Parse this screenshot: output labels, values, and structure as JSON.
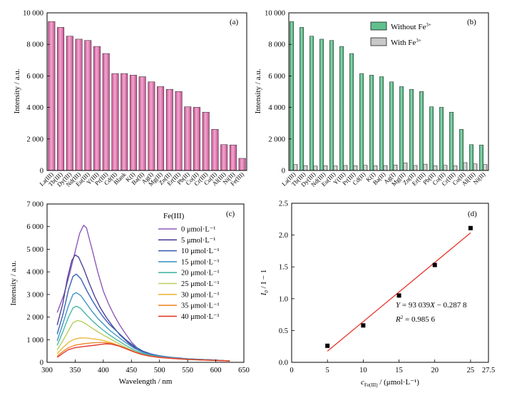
{
  "chart_data": [
    {
      "id": "a",
      "type": "bar",
      "panel_label": "(a)",
      "ylabel": "Intensity / a.u.",
      "ylim": [
        0,
        10000
      ],
      "yticks": [
        0,
        2000,
        4000,
        6000,
        8000,
        10000
      ],
      "ytick_labels": [
        "0",
        "2 000",
        "4 000",
        "6 000",
        "8 000",
        "10 000"
      ],
      "categories": [
        "La(III)",
        "Tb(III)",
        "Dy(III)",
        "Nd(III)",
        "Eu(III)",
        "Y(III)",
        "Pr(III)",
        "Cd(II)",
        "Blank",
        "K(I)",
        "Ba(II)",
        "Ag(I)",
        "Mg(II)",
        "Zn(II)",
        "Er(III)",
        "Pb(II)",
        "Co(II)",
        "Cr(III)",
        "Cu(II)",
        "Al(III)",
        "Ni(II)",
        "Fe(III)"
      ],
      "values": [
        9450,
        9080,
        8520,
        8330,
        8250,
        7870,
        7420,
        6150,
        6150,
        6050,
        5950,
        5620,
        5320,
        5150,
        5010,
        4040,
        4010,
        3700,
        2610,
        1640,
        1620,
        770
      ],
      "color": "#e07cb2"
    },
    {
      "id": "b",
      "type": "bar",
      "panel_label": "(b)",
      "ylabel": "Intensity / a.u.",
      "ylim": [
        0,
        10000
      ],
      "yticks": [
        0,
        2000,
        4000,
        6000,
        8000,
        10000
      ],
      "ytick_labels": [
        "0",
        "2 000",
        "4 000",
        "6 000",
        "8 000",
        "10 000"
      ],
      "categories": [
        "La(III)",
        "Tb(III)",
        "Dy(III)",
        "Nd(III)",
        "Eu(III)",
        "Y(III)",
        "Pr(III)",
        "Cd(II)",
        "K(I)",
        "Ba(II)",
        "Ag(I)",
        "Mg(II)",
        "Zn(II)",
        "Er(III)",
        "Pb(II)",
        "Co(II)",
        "Cr(III)",
        "Cu(II)",
        "Al(III)",
        "Ni(II)"
      ],
      "legend_position": "top-right",
      "series": [
        {
          "name": "Without Fe",
          "name_sup": "3+",
          "color": "#62c08d",
          "values": [
            9450,
            9080,
            8520,
            8330,
            8250,
            7870,
            7420,
            6150,
            6050,
            5950,
            5620,
            5320,
            5150,
            5010,
            4040,
            4010,
            3700,
            2610,
            1640,
            1620
          ]
        },
        {
          "name": "With Fe",
          "name_sup": "3+",
          "color": "#c8c8c8",
          "values": [
            380,
            310,
            280,
            300,
            290,
            320,
            300,
            330,
            300,
            310,
            350,
            480,
            320,
            400,
            300,
            330,
            300,
            500,
            420,
            380
          ]
        }
      ]
    },
    {
      "id": "c",
      "type": "line",
      "panel_label": "(c)",
      "xlabel": "Wavelength / nm",
      "ylabel": "Intensity / a.u.",
      "xlim": [
        300,
        650
      ],
      "xticks": [
        300,
        350,
        400,
        450,
        500,
        550,
        600,
        650
      ],
      "ylim": [
        0,
        7000
      ],
      "yticks": [
        0,
        1000,
        2000,
        3000,
        4000,
        5000,
        6000,
        7000
      ],
      "ytick_labels": [
        "0",
        "1 000",
        "2 000",
        "3 000",
        "4 000",
        "5 000",
        "6 000",
        "7 000"
      ],
      "legend_title": "Fe(III)",
      "legend_position": "top-right",
      "series": [
        {
          "name": "0 μmol·L⁻¹",
          "color": "#8e5ab8",
          "points": [
            [
              318,
              2200
            ],
            [
              330,
              3000
            ],
            [
              340,
              3900
            ],
            [
              350,
              4900
            ],
            [
              358,
              5700
            ],
            [
              365,
              6060
            ],
            [
              370,
              5950
            ],
            [
              380,
              5000
            ],
            [
              390,
              4000
            ],
            [
              400,
              3150
            ],
            [
              410,
              2550
            ],
            [
              420,
              2050
            ],
            [
              430,
              1620
            ],
            [
              440,
              1250
            ],
            [
              450,
              900
            ],
            [
              460,
              640
            ],
            [
              470,
              470
            ],
            [
              480,
              350
            ],
            [
              500,
              250
            ],
            [
              520,
              190
            ],
            [
              540,
              160
            ],
            [
              560,
              140
            ],
            [
              580,
              120
            ],
            [
              600,
              100
            ],
            [
              625,
              60
            ]
          ]
        },
        {
          "name": "5 μmol·L⁻¹",
          "color": "#4f3f9a",
          "points": [
            [
              318,
              1650
            ],
            [
              328,
              2600
            ],
            [
              336,
              3700
            ],
            [
              344,
              4500
            ],
            [
              350,
              4750
            ],
            [
              356,
              4650
            ],
            [
              365,
              4150
            ],
            [
              375,
              3500
            ],
            [
              385,
              2900
            ],
            [
              395,
              2400
            ],
            [
              405,
              2000
            ],
            [
              415,
              1650
            ],
            [
              430,
              1200
            ],
            [
              445,
              850
            ],
            [
              460,
              580
            ],
            [
              475,
              420
            ],
            [
              490,
              320
            ],
            [
              510,
              230
            ],
            [
              530,
              180
            ],
            [
              560,
              140
            ],
            [
              590,
              110
            ],
            [
              625,
              60
            ]
          ]
        },
        {
          "name": "10 μmol·L⁻¹",
          "color": "#3a62b5",
          "points": [
            [
              318,
              1250
            ],
            [
              328,
              2100
            ],
            [
              338,
              3200
            ],
            [
              346,
              3800
            ],
            [
              352,
              3900
            ],
            [
              360,
              3700
            ],
            [
              370,
              3200
            ],
            [
              380,
              2750
            ],
            [
              390,
              2350
            ],
            [
              400,
              2000
            ],
            [
              410,
              1700
            ],
            [
              425,
              1350
            ],
            [
              440,
              1000
            ],
            [
              455,
              720
            ],
            [
              470,
              500
            ],
            [
              485,
              370
            ],
            [
              500,
              290
            ],
            [
              520,
              220
            ],
            [
              550,
              160
            ],
            [
              580,
              120
            ],
            [
              625,
              60
            ]
          ]
        },
        {
          "name": "15 μmol·L⁻¹",
          "color": "#3f95c8",
          "points": [
            [
              318,
              950
            ],
            [
              328,
              1700
            ],
            [
              338,
              2500
            ],
            [
              346,
              3000
            ],
            [
              352,
              3080
            ],
            [
              360,
              2950
            ],
            [
              370,
              2600
            ],
            [
              380,
              2250
            ],
            [
              390,
              1950
            ],
            [
              400,
              1700
            ],
            [
              410,
              1450
            ],
            [
              425,
              1150
            ],
            [
              440,
              870
            ],
            [
              455,
              620
            ],
            [
              470,
              440
            ],
            [
              485,
              330
            ],
            [
              500,
              260
            ],
            [
              520,
              200
            ],
            [
              550,
              150
            ],
            [
              580,
              110
            ],
            [
              625,
              60
            ]
          ]
        },
        {
          "name": "20 μmol·L⁻¹",
          "color": "#48b8a4",
          "points": [
            [
              318,
              750
            ],
            [
              328,
              1350
            ],
            [
              338,
              2000
            ],
            [
              346,
              2400
            ],
            [
              352,
              2480
            ],
            [
              360,
              2380
            ],
            [
              370,
              2100
            ],
            [
              380,
              1850
            ],
            [
              390,
              1620
            ],
            [
              400,
              1420
            ],
            [
              410,
              1230
            ],
            [
              425,
              980
            ],
            [
              440,
              750
            ],
            [
              455,
              540
            ],
            [
              470,
              390
            ],
            [
              485,
              300
            ],
            [
              500,
              240
            ],
            [
              520,
              190
            ],
            [
              550,
              140
            ],
            [
              580,
              110
            ],
            [
              625,
              60
            ]
          ]
        },
        {
          "name": "25 μmol·L⁻¹",
          "color": "#b7cf5c",
          "points": [
            [
              318,
              550
            ],
            [
              328,
              950
            ],
            [
              338,
              1400
            ],
            [
              346,
              1750
            ],
            [
              354,
              1850
            ],
            [
              362,
              1800
            ],
            [
              372,
              1650
            ],
            [
              382,
              1480
            ],
            [
              392,
              1320
            ],
            [
              402,
              1180
            ],
            [
              412,
              1040
            ],
            [
              425,
              860
            ],
            [
              440,
              660
            ],
            [
              455,
              480
            ],
            [
              470,
              350
            ],
            [
              485,
              270
            ],
            [
              500,
              220
            ],
            [
              520,
              180
            ],
            [
              550,
              130
            ],
            [
              580,
              100
            ],
            [
              625,
              60
            ]
          ]
        },
        {
          "name": "30 μmol·L⁻¹",
          "color": "#e8b93d",
          "points": [
            [
              318,
              380
            ],
            [
              328,
              650
            ],
            [
              338,
              880
            ],
            [
              348,
              1020
            ],
            [
              360,
              1080
            ],
            [
              372,
              1070
            ],
            [
              385,
              1030
            ],
            [
              398,
              980
            ],
            [
              410,
              900
            ],
            [
              422,
              800
            ],
            [
              435,
              650
            ],
            [
              450,
              500
            ],
            [
              465,
              370
            ],
            [
              480,
              280
            ],
            [
              500,
              220
            ],
            [
              520,
              180
            ],
            [
              550,
              130
            ],
            [
              580,
              100
            ],
            [
              625,
              60
            ]
          ]
        },
        {
          "name": "35 μmol·L⁻¹",
          "color": "#f08a2d",
          "points": [
            [
              318,
              280
            ],
            [
              328,
              480
            ],
            [
              338,
              650
            ],
            [
              350,
              760
            ],
            [
              365,
              820
            ],
            [
              380,
              860
            ],
            [
              395,
              880
            ],
            [
              405,
              870
            ],
            [
              415,
              830
            ],
            [
              428,
              740
            ],
            [
              442,
              600
            ],
            [
              456,
              460
            ],
            [
              470,
              350
            ],
            [
              485,
              270
            ],
            [
              500,
              220
            ],
            [
              520,
              180
            ],
            [
              550,
              130
            ],
            [
              580,
              100
            ],
            [
              625,
              60
            ]
          ]
        },
        {
          "name": "40 μmol·L⁻¹",
          "color": "#e23a2e",
          "points": [
            [
              318,
              220
            ],
            [
              328,
              400
            ],
            [
              338,
              560
            ],
            [
              350,
              650
            ],
            [
              365,
              700
            ],
            [
              380,
              740
            ],
            [
              395,
              790
            ],
            [
              405,
              820
            ],
            [
              415,
              800
            ],
            [
              428,
              720
            ],
            [
              442,
              590
            ],
            [
              456,
              450
            ],
            [
              470,
              340
            ],
            [
              485,
              265
            ],
            [
              500,
              215
            ],
            [
              520,
              175
            ],
            [
              550,
              130
            ],
            [
              580,
              100
            ],
            [
              625,
              60
            ]
          ]
        }
      ]
    },
    {
      "id": "d",
      "type": "scatter",
      "panel_label": "(d)",
      "xlabel_main": "c",
      "xlabel_sub": "Fe(III)",
      "xlabel_rest": " / (μmol·L⁻¹)",
      "ylabel_main": "I",
      "ylabel_sub": "0",
      "ylabel_rest": " / I − 1",
      "xlim": [
        0,
        27.5
      ],
      "xticks": [
        0,
        5,
        10,
        15,
        20,
        25,
        27.5
      ],
      "xtick_labels": [
        "0",
        "5",
        "10",
        "15",
        "20",
        "25",
        "27.5"
      ],
      "ylim": [
        0,
        2.5
      ],
      "yticks": [
        0,
        0.5,
        1.0,
        1.5,
        2.0,
        2.5
      ],
      "ytick_labels": [
        "0.0",
        "0.5",
        "1.0",
        "1.5",
        "2.0",
        "2.5"
      ],
      "points": [
        [
          5,
          0.26
        ],
        [
          10,
          0.58
        ],
        [
          15,
          1.05
        ],
        [
          20,
          1.53
        ],
        [
          25,
          2.11
        ]
      ],
      "fit_line": {
        "x": [
          5,
          25
        ],
        "y": [
          0.175,
          2.035
        ],
        "color": "#e8332a"
      },
      "equation_y": "Y",
      "equation_rest": " = 93 039",
      "equation_x": "X",
      "equation_tail": " − 0.287 8",
      "r2_label": "R",
      "r2_sup": "2",
      "r2_value": " = 0.985 6"
    }
  ]
}
